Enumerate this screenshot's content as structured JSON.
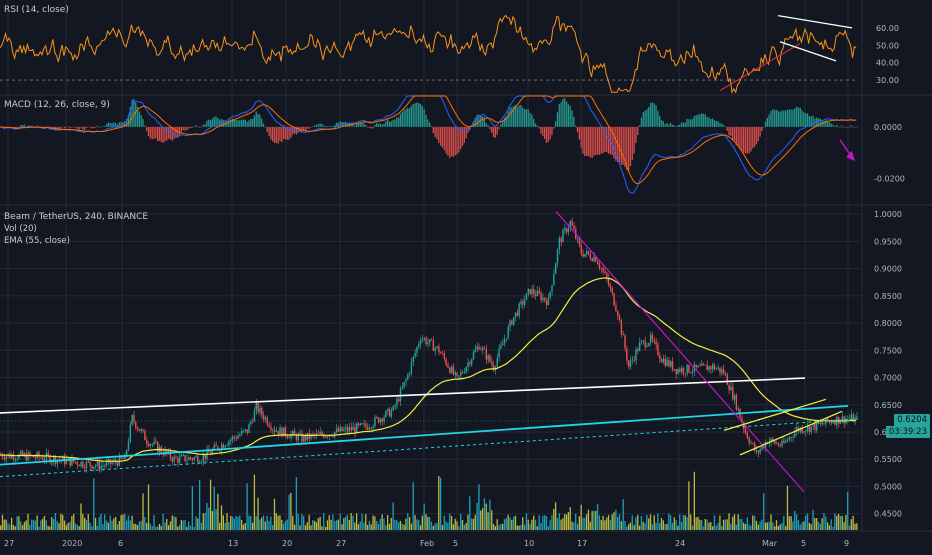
{
  "panes": {
    "rsi": {
      "label": "RSI (14, close)",
      "ticks": [
        "60.00",
        "50.00",
        "40.00",
        "30.00"
      ],
      "tick_values": [
        60,
        50,
        40,
        30
      ],
      "range": [
        22,
        76
      ],
      "overbought_guide": 70,
      "oversold_guide": 30
    },
    "macd": {
      "label": "MACD (12, 26, close, 9)",
      "ticks": [
        "0.0000",
        "-0.0200"
      ],
      "tick_values": [
        0,
        -0.02
      ],
      "range": [
        -0.03,
        0.012
      ]
    },
    "price": {
      "label": "Beam / TetherUS, 240, BINANCE",
      "vol_label": "Vol (20)",
      "ema_label": "EMA (55, close)",
      "ticks": [
        "1.0000",
        "0.9500",
        "0.9000",
        "0.8500",
        "0.8000",
        "0.7500",
        "0.7000",
        "0.6500",
        "0.6000",
        "0.5500",
        "0.5000",
        "0.4500"
      ],
      "tick_values": [
        1.0,
        0.95,
        0.9,
        0.85,
        0.8,
        0.75,
        0.7,
        0.65,
        0.6,
        0.55,
        0.5,
        0.45
      ],
      "range": [
        0.42,
        1.015
      ],
      "last_price": "0.6204",
      "last_price_value": 0.6204,
      "countdown": "03:39:23"
    }
  },
  "time_axis": {
    "labels": [
      "27",
      "2020",
      "6",
      "13",
      "20",
      "27",
      "Feb",
      "5",
      "10",
      "17",
      "24",
      "Mar",
      "5",
      "9"
    ]
  },
  "colors": {
    "background": "#131722",
    "grid": "#242833",
    "up": "#26a69a",
    "down": "#ef5350",
    "rsi_line": "#f7931a",
    "macd_line": "#2962ff",
    "signal_line": "#ff6d00",
    "ema": "#f5ec42",
    "support_cyan": "#21d5e6",
    "trendline_white": "#ffffff",
    "trendline_magenta": "#c517c7",
    "rsi_trend_red": "#e0343c",
    "vol_yellow": "#d8d84a",
    "vol_cyan": "#1fb9d4",
    "price_badge": "#26a69a"
  },
  "arrow_icon": "arrow-down-right-icon"
}
